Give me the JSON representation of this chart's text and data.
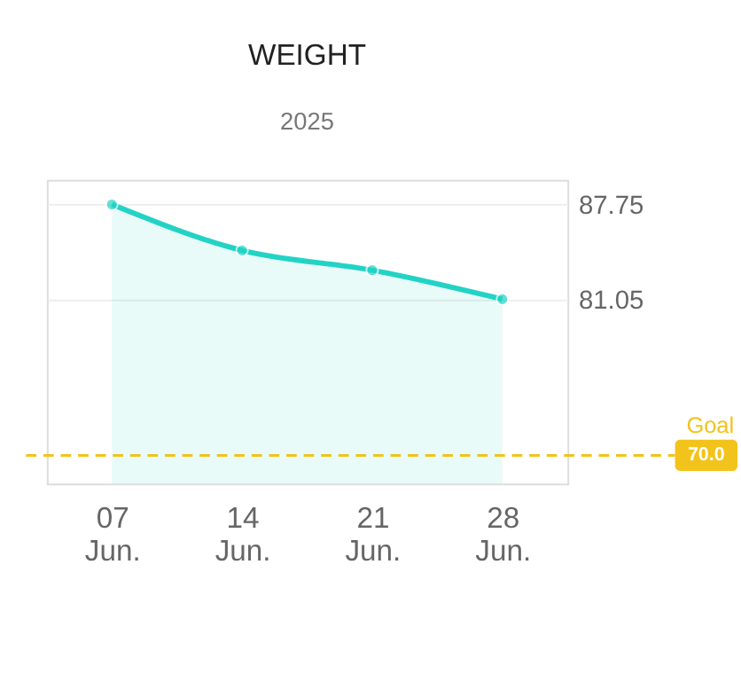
{
  "chart_data": {
    "type": "area",
    "title": "WEIGHT",
    "subtitle": "2025",
    "categories": [
      "07 Jun.",
      "14 Jun.",
      "21 Jun.",
      "28 Jun."
    ],
    "series": [
      {
        "color": "#22d3c5",
        "values": [
          87.75,
          84.5,
          83.1,
          81.05
        ]
      }
    ],
    "ylim": [
      68,
      89.5
    ],
    "yticks": [
      87.75,
      81.05
    ],
    "grid": "y",
    "marker": "circle",
    "line_style": "solid",
    "ref_lines": [
      {
        "axis": "y",
        "value": 70,
        "label": "Goal",
        "color": "#f2c31b",
        "line_style": "dashed"
      }
    ],
    "annotations": [
      "70.0"
    ]
  }
}
